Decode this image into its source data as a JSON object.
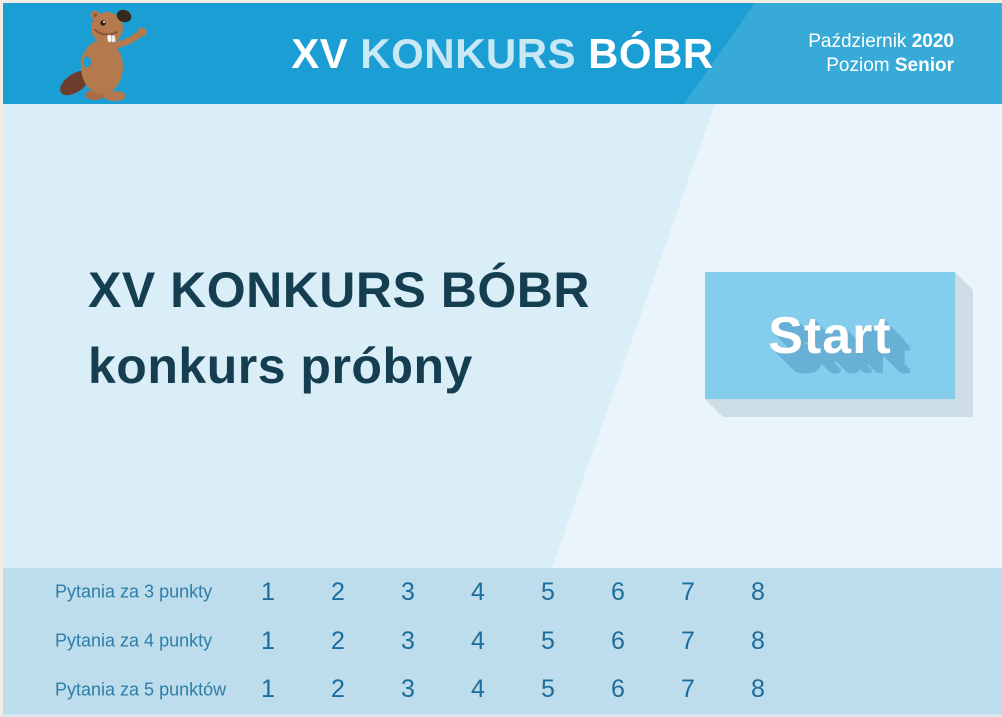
{
  "header": {
    "bg_left": "#1b9ed3",
    "bg_right": "#37aad8",
    "title": {
      "part1": "XV",
      "part2": "KONKURS",
      "part3": "BÓBR",
      "part2_color": "#c9e8f5"
    },
    "info": {
      "line1_regular": "Październik",
      "line1_bold": "2020",
      "line2_regular": "Poziom",
      "line2_bold": "Senior"
    },
    "mascot": "beaver-mascot"
  },
  "main": {
    "bg_left": "#d9eef7",
    "bg_right": "#e9f5fb",
    "heading_line1": "XV KONKURS BÓBR",
    "heading_line2": "konkurs próbny",
    "heading_color": "#153e50",
    "start_button": {
      "label": "Start",
      "bg": "#85cdec",
      "text_color": "#ffffff",
      "shadow_color": "#68b0d5"
    }
  },
  "questions": {
    "bg": "#bddcec",
    "label_color": "#2e7ea8",
    "number_color": "#1c6d9c",
    "rows": [
      {
        "label": "Pytania za 3 punkty",
        "numbers": [
          "1",
          "2",
          "3",
          "4",
          "5",
          "6",
          "7",
          "8"
        ]
      },
      {
        "label": "Pytania za 4 punkty",
        "numbers": [
          "1",
          "2",
          "3",
          "4",
          "5",
          "6",
          "7",
          "8"
        ]
      },
      {
        "label": "Pytania za 5 punktów",
        "numbers": [
          "1",
          "2",
          "3",
          "4",
          "5",
          "6",
          "7",
          "8"
        ]
      }
    ]
  }
}
